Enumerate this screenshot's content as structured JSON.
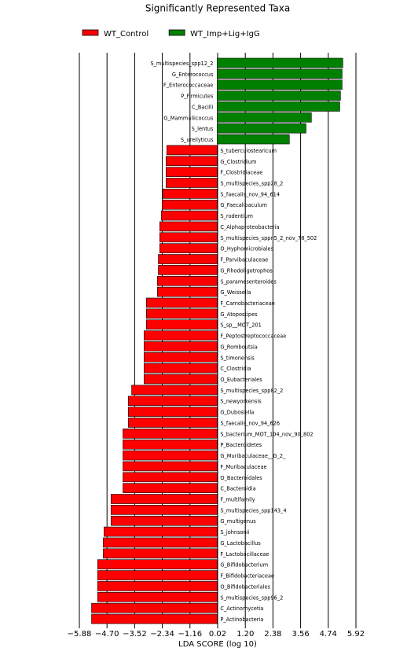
{
  "chart_data": {
    "type": "diverging-bar",
    "orientation": "horizontal",
    "title": "Significantly Represented Taxa",
    "x_label": "LDA SCORE (log 10)",
    "categories": [
      "S_multispecies_spp12_2",
      "G_Enterococcus",
      "F_Enterococcaceae",
      "P_Firmicutes",
      "C_Bacilli",
      "G_Mammaliicoccus",
      "S_lentus",
      "S_ureilyticus",
      "S_tuberculostearicum",
      "G_Clostridium",
      "F_Clostridiaceae",
      "S_multispecies_spp28_2",
      "S_faecalis_nov_94_614",
      "G_Faecalibaculum",
      "S_rodentium",
      "C_Alphaproteobacteria",
      "S_multispecies_sppn5_2_nov_78_502",
      "O_Hyphomicrobiales",
      "F_Parvibaculaceae",
      "G_Rhodoligotrophos",
      "S_paramesenteroides",
      "G_Weissella",
      "F_Carnobacteriaceae",
      "G_Atopostipes",
      "S_sp__MOT_201",
      "F_Peptostreptococcaceae",
      "G_Romboutsia",
      "S_timonensis",
      "C_Clostridia",
      "O_Eubacteriales",
      "S_multispecies_spp82_2",
      "S_newyorkensis",
      "G_Dubosiella",
      "S_faecalis_nov_94_626",
      "S_bacterium_MOT_104_nov_90_802",
      "P_Bacteroidetes",
      "G_Muribaculaceae__G_2_",
      "F_Muribaculaceae",
      "O_Bacteroidales",
      "C_Bacteroidia",
      "F_multifamily",
      "S_multispecies_spp143_4",
      "G_multigenus",
      "S_johnsonii",
      "G_Lactobacillus",
      "F_Lactobacillaceae",
      "G_Bifidobacterium",
      "F_Bifidobacteriaceae",
      "O_Bifidobacteriales",
      "S_multispecies_spp96_2",
      "C_Actinomycetia",
      "P_Actinobacteria"
    ],
    "series": [
      {
        "name": "WT_Control",
        "color": "#ff0000",
        "values": [
          null,
          null,
          null,
          null,
          null,
          null,
          null,
          null,
          -2.15,
          -2.18,
          -2.18,
          -2.18,
          -2.31,
          -2.35,
          -2.38,
          -2.45,
          -2.45,
          -2.45,
          -2.51,
          -2.51,
          -2.55,
          -2.55,
          -3.02,
          -3.02,
          -3.02,
          -3.12,
          -3.12,
          -3.12,
          -3.12,
          -3.12,
          -3.65,
          -3.79,
          -3.79,
          -3.79,
          -4.02,
          -4.02,
          -4.02,
          -4.02,
          -4.02,
          -4.02,
          -4.53,
          -4.53,
          -4.53,
          -4.83,
          -4.86,
          -4.86,
          -5.1,
          -5.1,
          -5.1,
          -5.1,
          -5.36,
          -5.36
        ]
      },
      {
        "name": "WT_Imp+Lig+IgG",
        "color": "#008000",
        "values": [
          5.36,
          5.33,
          5.33,
          5.26,
          5.23,
          4.02,
          3.79,
          3.08,
          null,
          null,
          null,
          null,
          null,
          null,
          null,
          null,
          null,
          null,
          null,
          null,
          null,
          null,
          null,
          null,
          null,
          null,
          null,
          null,
          null,
          null,
          null,
          null,
          null,
          null,
          null,
          null,
          null,
          null,
          null,
          null,
          null,
          null,
          null,
          null,
          null,
          null,
          null,
          null,
          null,
          null,
          null,
          null
        ]
      }
    ],
    "xlim": [
      -5.88,
      5.92
    ],
    "xticks": [
      {
        "value": -5.88,
        "label": "−5.88"
      },
      {
        "value": -4.7,
        "label": "−4.70"
      },
      {
        "value": -3.52,
        "label": "−3.52"
      },
      {
        "value": -2.34,
        "label": "−2.34"
      },
      {
        "value": -1.16,
        "label": "−1.16"
      },
      {
        "value": 0.02,
        "label": "0.02"
      },
      {
        "value": 1.2,
        "label": "1.20"
      },
      {
        "value": 2.38,
        "label": "2.38"
      },
      {
        "value": 3.56,
        "label": "3.56"
      },
      {
        "value": 4.74,
        "label": "4.74"
      },
      {
        "value": 5.92,
        "label": "5.92"
      }
    ],
    "grid": true,
    "legend": "top"
  }
}
